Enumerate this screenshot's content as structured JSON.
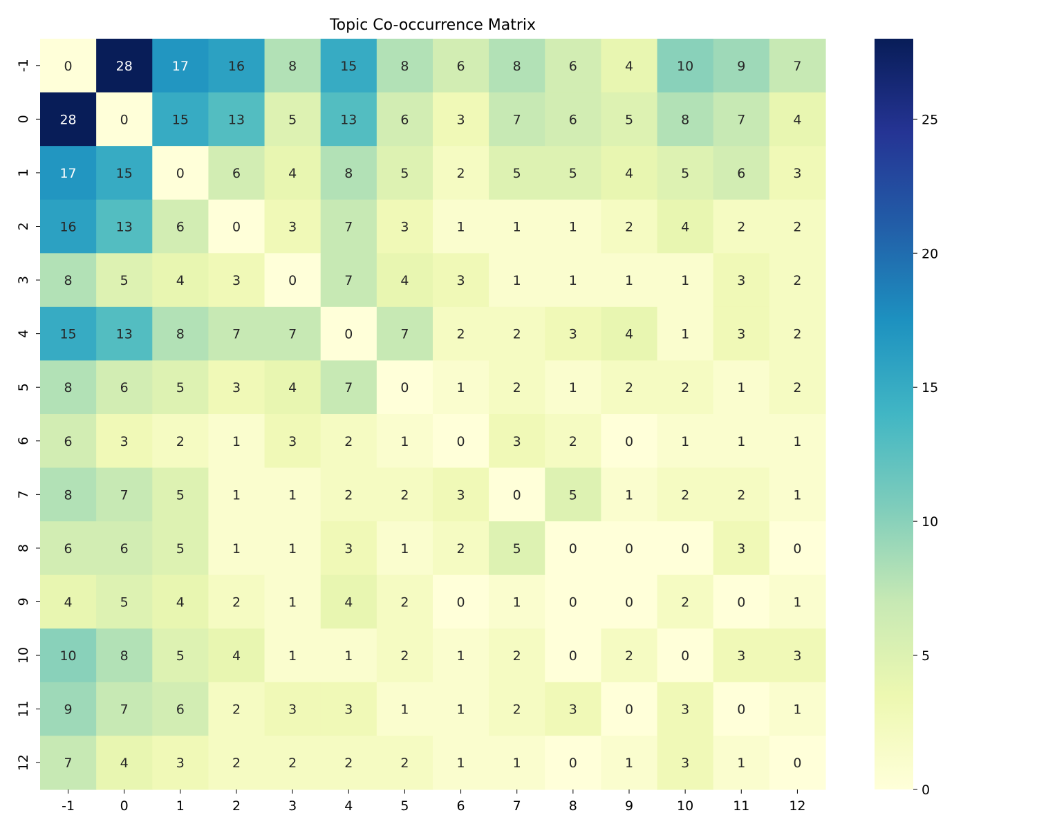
{
  "chart_data": {
    "type": "heatmap",
    "title": "Topic Co-occurrence Matrix",
    "xlabel": "",
    "ylabel": "",
    "x_categories": [
      "-1",
      "0",
      "1",
      "2",
      "3",
      "4",
      "5",
      "6",
      "7",
      "8",
      "9",
      "10",
      "11",
      "12"
    ],
    "y_categories": [
      "-1",
      "0",
      "1",
      "2",
      "3",
      "4",
      "5",
      "6",
      "7",
      "8",
      "9",
      "10",
      "11",
      "12"
    ],
    "values": [
      [
        0,
        28,
        17,
        16,
        8,
        15,
        8,
        6,
        8,
        6,
        4,
        10,
        9,
        7
      ],
      [
        28,
        0,
        15,
        13,
        5,
        13,
        6,
        3,
        7,
        6,
        5,
        8,
        7,
        4
      ],
      [
        17,
        15,
        0,
        6,
        4,
        8,
        5,
        2,
        5,
        5,
        4,
        5,
        6,
        3
      ],
      [
        16,
        13,
        6,
        0,
        3,
        7,
        3,
        1,
        1,
        1,
        2,
        4,
        2,
        2
      ],
      [
        8,
        5,
        4,
        3,
        0,
        7,
        4,
        3,
        1,
        1,
        1,
        1,
        3,
        2
      ],
      [
        15,
        13,
        8,
        7,
        7,
        0,
        7,
        2,
        2,
        3,
        4,
        1,
        3,
        2
      ],
      [
        8,
        6,
        5,
        3,
        4,
        7,
        0,
        1,
        2,
        1,
        2,
        2,
        1,
        2
      ],
      [
        6,
        3,
        2,
        1,
        3,
        2,
        1,
        0,
        3,
        2,
        0,
        1,
        1,
        1
      ],
      [
        8,
        7,
        5,
        1,
        1,
        2,
        2,
        3,
        0,
        5,
        1,
        2,
        2,
        1
      ],
      [
        6,
        6,
        5,
        1,
        1,
        3,
        1,
        2,
        5,
        0,
        0,
        0,
        3,
        0
      ],
      [
        4,
        5,
        4,
        2,
        1,
        4,
        2,
        0,
        1,
        0,
        0,
        2,
        0,
        1
      ],
      [
        10,
        8,
        5,
        4,
        1,
        1,
        2,
        1,
        2,
        0,
        2,
        0,
        3,
        3
      ],
      [
        9,
        7,
        6,
        2,
        3,
        3,
        1,
        1,
        2,
        3,
        0,
        3,
        0,
        1
      ],
      [
        7,
        4,
        3,
        2,
        2,
        2,
        2,
        1,
        1,
        0,
        1,
        3,
        1,
        0
      ]
    ],
    "colormap": "YlGnBu",
    "vmin": 0,
    "vmax": 28,
    "colorbar_ticks": [
      0,
      5,
      10,
      15,
      20,
      25
    ],
    "annotations": true,
    "grid": false
  }
}
